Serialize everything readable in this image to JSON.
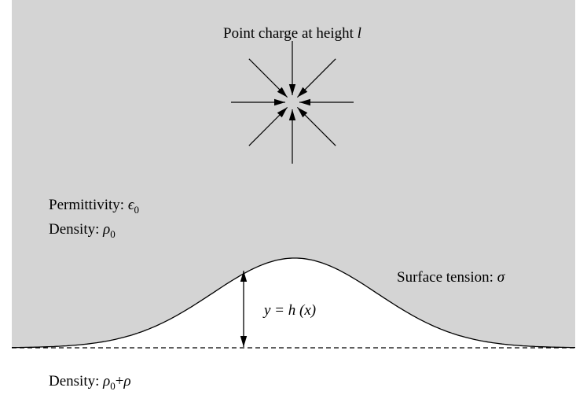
{
  "labels": {
    "title": {
      "text": "Point charge at height ",
      "symbol": "l"
    },
    "permittivity": {
      "text": "Permittivity: ",
      "symbol": "ϵ",
      "sub": "0"
    },
    "density_upper": {
      "text": "Density: ",
      "symbol": "ρ",
      "sub": "0"
    },
    "surface_tension": {
      "text": "Surface tension: ",
      "symbol": "σ"
    },
    "height": {
      "text": "y = h (x)"
    },
    "density_lower": {
      "text": "Density: ",
      "symbol": "ρ",
      "sub": "0",
      "rest": "+",
      "symbol2": "ρ"
    }
  }
}
